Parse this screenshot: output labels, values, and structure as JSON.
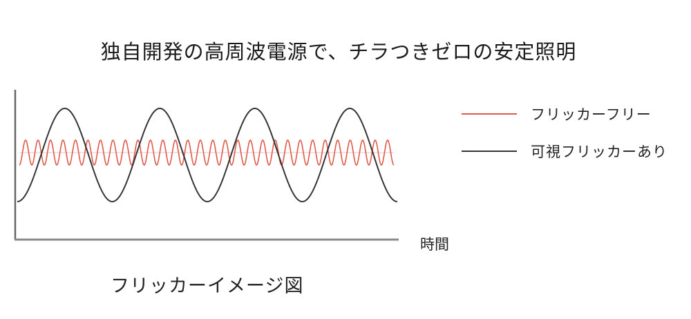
{
  "title": "独自開発の高周波電源で、チラつきゼロの安定照明",
  "caption": "フリッカーイメージ図",
  "chart_data": {
    "type": "line",
    "title": "独自開発の高周波電源で、チラつきゼロの安定照明",
    "xlabel": "時間",
    "ylabel": "",
    "grid": false,
    "legend_position": "right",
    "series": [
      {
        "name": "フリッカーフリー",
        "color": "#e0584a",
        "cycles": 30,
        "amplitude": 0.27,
        "offset": 0.5
      },
      {
        "name": "可視フリッカーあり",
        "color": "#333333",
        "cycles": 4,
        "amplitude": 1.0,
        "offset": 0.0
      }
    ]
  }
}
